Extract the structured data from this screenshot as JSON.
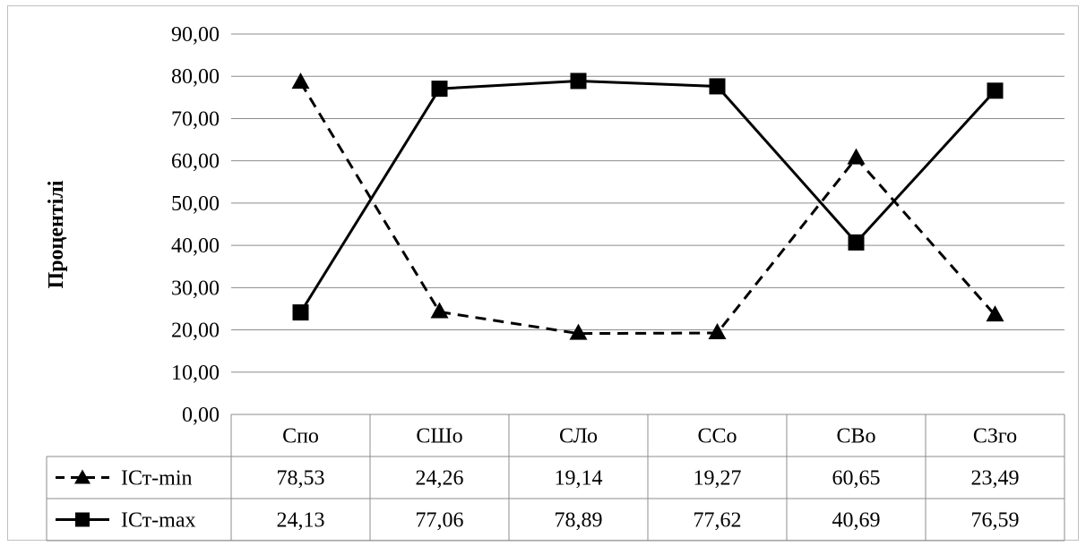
{
  "chart_data": {
    "type": "line",
    "ylabel": "Процентілі",
    "xlabel": "",
    "ylim": [
      0,
      90
    ],
    "y_ticks": [
      "0,00",
      "10,00",
      "20,00",
      "30,00",
      "40,00",
      "50,00",
      "60,00",
      "70,00",
      "80,00",
      "90,00"
    ],
    "categories": [
      "Спо",
      "СШо",
      "СЛо",
      "ССо",
      "СВо",
      "СЗго"
    ],
    "grid": "horizontal",
    "legend": "data-table-left",
    "series": [
      {
        "name": "ІСт-min",
        "values": [
          78.53,
          24.26,
          19.14,
          19.27,
          60.65,
          23.49
        ],
        "labels": [
          "78,53",
          "24,26",
          "19,14",
          "19,27",
          "60,65",
          "23,49"
        ],
        "line_style": "dashed",
        "marker": "triangle",
        "color": "#000000"
      },
      {
        "name": "ІСт-max",
        "values": [
          24.13,
          77.06,
          78.89,
          77.62,
          40.69,
          76.59
        ],
        "labels": [
          "24,13",
          "77,06",
          "78,89",
          "77,62",
          "40,69",
          "76,59"
        ],
        "line_style": "solid",
        "marker": "square",
        "color": "#000000"
      }
    ]
  }
}
